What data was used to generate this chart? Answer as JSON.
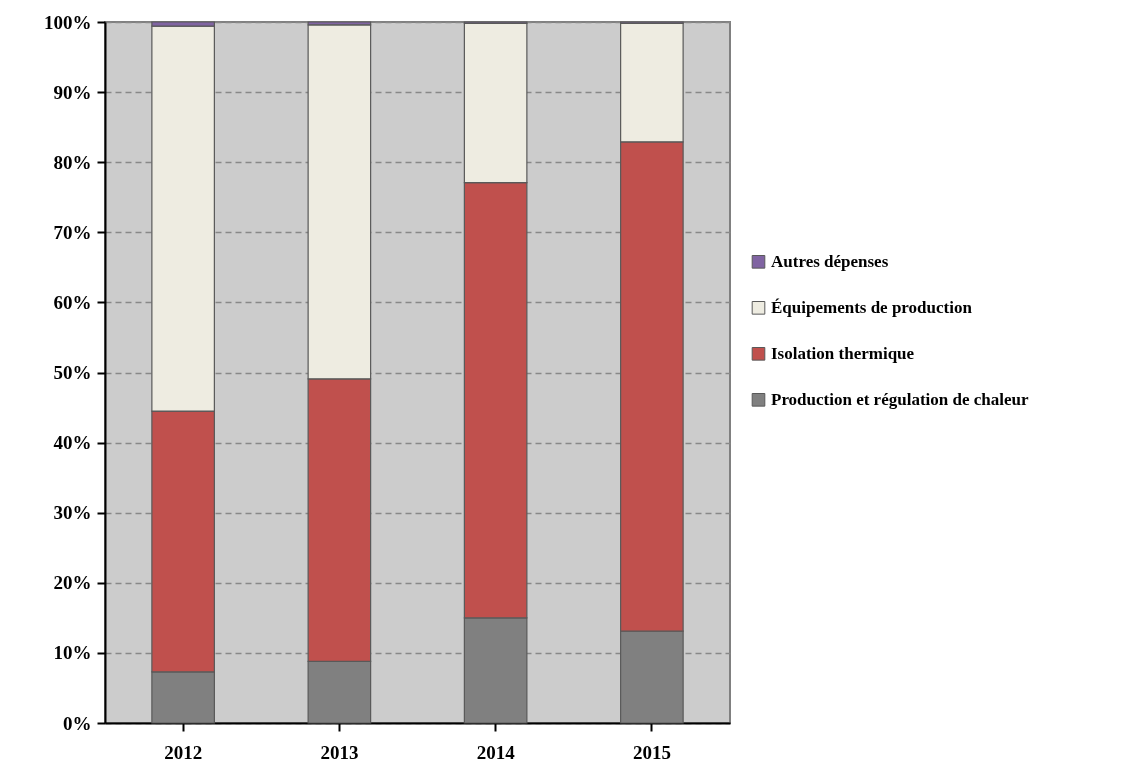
{
  "chart_data": {
    "type": "bar",
    "stacked": true,
    "categories": [
      "2012",
      "2013",
      "2014",
      "2015"
    ],
    "series": [
      {
        "name": "Production et régulation de chaleur",
        "color": "#808080",
        "values": [
          7.3,
          8.8,
          15.0,
          13.1
        ]
      },
      {
        "name": "Isolation thermique",
        "color": "#c0504d",
        "values": [
          37.2,
          40.3,
          62.1,
          69.8
        ]
      },
      {
        "name": "Équipements de production",
        "color": "#eeece1",
        "values": [
          54.9,
          50.5,
          22.7,
          16.9
        ]
      },
      {
        "name": "Autres dépenses",
        "color": "#8064a2",
        "values": [
          0.6,
          0.4,
          0.2,
          0.2
        ]
      }
    ],
    "ylim": [
      0,
      100
    ],
    "yticks": [
      {
        "value": 0,
        "label": "0%"
      },
      {
        "value": 10,
        "label": "10%"
      },
      {
        "value": 20,
        "label": "20%"
      },
      {
        "value": 30,
        "label": "30%"
      },
      {
        "value": 40,
        "label": "40%"
      },
      {
        "value": 50,
        "label": "50%"
      },
      {
        "value": 60,
        "label": "60%"
      },
      {
        "value": 70,
        "label": "70%"
      },
      {
        "value": 80,
        "label": "80%"
      },
      {
        "value": 90,
        "label": "90%"
      },
      {
        "value": 100,
        "label": "100%"
      }
    ],
    "grid": "y",
    "legend": "right"
  }
}
